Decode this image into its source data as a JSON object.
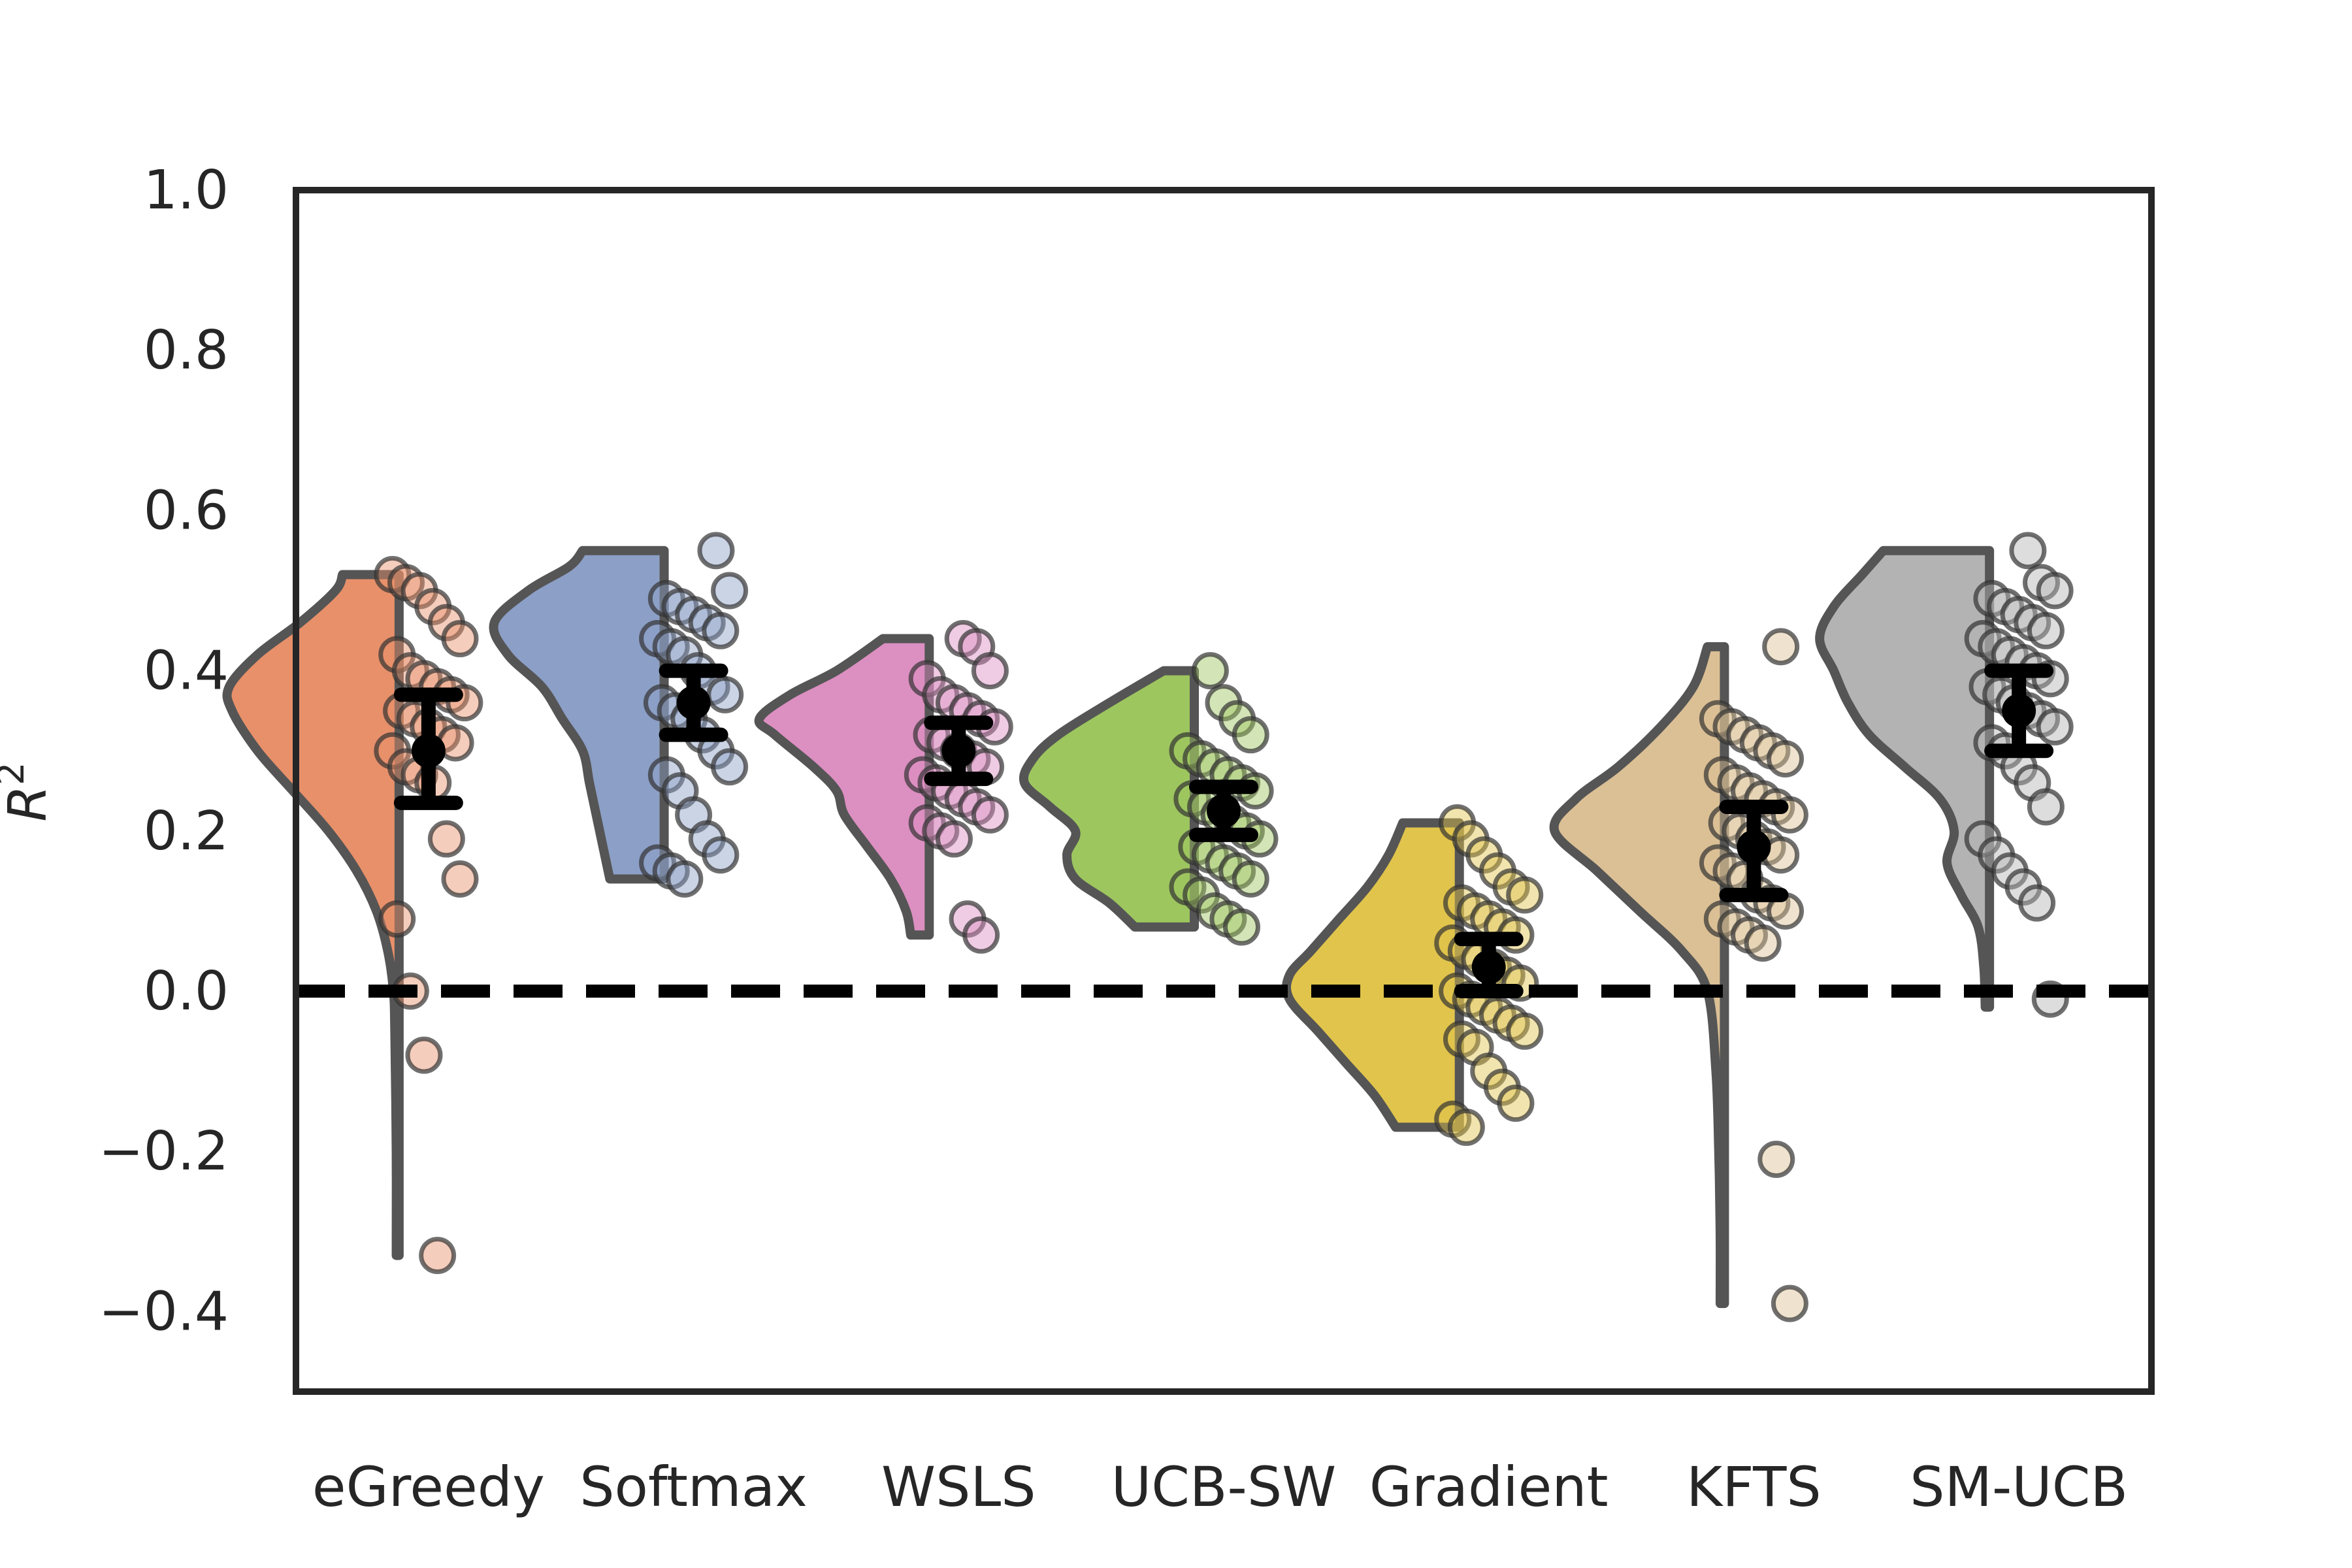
{
  "chart_data": {
    "type": "raincloud",
    "title": "",
    "xlabel": "",
    "ylabel": "R",
    "ylabel_superscript": "2",
    "ylim": [
      -0.5,
      1.0
    ],
    "yticks": [
      1.0,
      0.8,
      0.6,
      0.4,
      0.2,
      0.0,
      -0.2,
      -0.4
    ],
    "ytick_labels": [
      "1.0",
      "0.8",
      "0.6",
      "0.4",
      "0.2",
      "0.0",
      "−0.2",
      "−0.4"
    ],
    "reference_line": 0.0,
    "grid": false,
    "legend": "none",
    "categories": [
      "eGreedy",
      "Softmax",
      "WSLS",
      "UCB-SW",
      "Gradient",
      "KFTS",
      "SM-UCB"
    ],
    "colors": [
      "#e8906a",
      "#8c9fc6",
      "#dc8fc1",
      "#9dc65f",
      "#e1c44b",
      "#dbc095",
      "#b3b3b3"
    ],
    "series": [
      {
        "mean": 0.3,
        "ci": [
          0.235,
          0.37
        ],
        "density_range": [
          -0.33,
          0.52
        ],
        "density": [
          [
            -0.33,
            0.002
          ],
          [
            -0.2,
            0.002
          ],
          [
            -0.05,
            0.003
          ],
          [
            0.0,
            0.004
          ],
          [
            0.05,
            0.008
          ],
          [
            0.1,
            0.016
          ],
          [
            0.15,
            0.03
          ],
          [
            0.2,
            0.05
          ],
          [
            0.25,
            0.075
          ],
          [
            0.3,
            0.1
          ],
          [
            0.35,
            0.118
          ],
          [
            0.38,
            0.12
          ],
          [
            0.42,
            0.1
          ],
          [
            0.46,
            0.07
          ],
          [
            0.5,
            0.045
          ],
          [
            0.52,
            0.04
          ]
        ],
        "points": [
          0.52,
          0.51,
          0.5,
          0.48,
          0.46,
          0.44,
          0.42,
          0.4,
          0.39,
          0.38,
          0.37,
          0.36,
          0.35,
          0.34,
          0.33,
          0.32,
          0.31,
          0.3,
          0.28,
          0.27,
          0.26,
          0.19,
          0.14,
          0.09,
          0.0,
          -0.08,
          -0.33
        ]
      },
      {
        "mean": 0.36,
        "ci": [
          0.32,
          0.4
        ],
        "density_range": [
          0.14,
          0.55
        ],
        "density": [
          [
            0.14,
            0.04
          ],
          [
            0.18,
            0.045
          ],
          [
            0.22,
            0.05
          ],
          [
            0.26,
            0.055
          ],
          [
            0.3,
            0.06
          ],
          [
            0.34,
            0.075
          ],
          [
            0.38,
            0.09
          ],
          [
            0.42,
            0.115
          ],
          [
            0.46,
            0.125
          ],
          [
            0.5,
            0.1
          ],
          [
            0.53,
            0.07
          ],
          [
            0.55,
            0.06
          ]
        ],
        "points": [
          0.55,
          0.5,
          0.49,
          0.48,
          0.47,
          0.46,
          0.45,
          0.44,
          0.43,
          0.42,
          0.4,
          0.38,
          0.37,
          0.36,
          0.35,
          0.34,
          0.32,
          0.3,
          0.28,
          0.27,
          0.25,
          0.22,
          0.19,
          0.17,
          0.16,
          0.15,
          0.14
        ]
      },
      {
        "mean": 0.3,
        "ci": [
          0.265,
          0.335
        ],
        "density_range": [
          0.07,
          0.44
        ],
        "density": [
          [
            0.07,
            0.012
          ],
          [
            0.1,
            0.015
          ],
          [
            0.14,
            0.025
          ],
          [
            0.18,
            0.04
          ],
          [
            0.22,
            0.055
          ],
          [
            0.25,
            0.06
          ],
          [
            0.28,
            0.075
          ],
          [
            0.32,
            0.1
          ],
          [
            0.34,
            0.11
          ],
          [
            0.37,
            0.09
          ],
          [
            0.4,
            0.06
          ],
          [
            0.44,
            0.03
          ]
        ],
        "points": [
          0.44,
          0.43,
          0.4,
          0.39,
          0.37,
          0.36,
          0.35,
          0.34,
          0.33,
          0.32,
          0.31,
          0.3,
          0.29,
          0.28,
          0.27,
          0.26,
          0.25,
          0.24,
          0.23,
          0.22,
          0.21,
          0.2,
          0.19,
          0.09,
          0.07
        ]
      },
      {
        "mean": 0.225,
        "ci": [
          0.195,
          0.255
        ],
        "density_range": [
          0.08,
          0.4
        ],
        "density": [
          [
            0.08,
            0.035
          ],
          [
            0.11,
            0.05
          ],
          [
            0.14,
            0.07
          ],
          [
            0.17,
            0.075
          ],
          [
            0.2,
            0.07
          ],
          [
            0.23,
            0.085
          ],
          [
            0.26,
            0.1
          ],
          [
            0.29,
            0.095
          ],
          [
            0.32,
            0.08
          ],
          [
            0.36,
            0.05
          ],
          [
            0.4,
            0.018
          ]
        ],
        "points": [
          0.4,
          0.36,
          0.34,
          0.32,
          0.3,
          0.29,
          0.28,
          0.27,
          0.26,
          0.25,
          0.24,
          0.23,
          0.22,
          0.21,
          0.2,
          0.19,
          0.18,
          0.17,
          0.16,
          0.15,
          0.14,
          0.13,
          0.12,
          0.1,
          0.09,
          0.08
        ]
      },
      {
        "mean": 0.03,
        "ci": [
          0.0,
          0.065
        ],
        "density_range": [
          -0.17,
          0.21
        ],
        "density": [
          [
            -0.17,
            0.045
          ],
          [
            -0.13,
            0.06
          ],
          [
            -0.09,
            0.08
          ],
          [
            -0.05,
            0.1
          ],
          [
            -0.01,
            0.12
          ],
          [
            0.02,
            0.12
          ],
          [
            0.05,
            0.105
          ],
          [
            0.09,
            0.085
          ],
          [
            0.13,
            0.065
          ],
          [
            0.17,
            0.05
          ],
          [
            0.21,
            0.04
          ]
        ],
        "points": [
          0.21,
          0.19,
          0.17,
          0.15,
          0.13,
          0.12,
          0.11,
          0.1,
          0.09,
          0.08,
          0.07,
          0.06,
          0.05,
          0.04,
          0.03,
          0.02,
          0.01,
          0.0,
          -0.01,
          -0.02,
          -0.03,
          -0.04,
          -0.05,
          -0.06,
          -0.07,
          -0.1,
          -0.12,
          -0.14,
          -0.16,
          -0.17
        ]
      },
      {
        "mean": 0.18,
        "ci": [
          0.12,
          0.23
        ],
        "density_range": [
          -0.39,
          0.43
        ],
        "density": [
          [
            -0.39,
            0.003
          ],
          [
            -0.3,
            0.003
          ],
          [
            -0.2,
            0.004
          ],
          [
            -0.1,
            0.006
          ],
          [
            0.0,
            0.012
          ],
          [
            0.05,
            0.03
          ],
          [
            0.1,
            0.06
          ],
          [
            0.15,
            0.09
          ],
          [
            0.2,
            0.12
          ],
          [
            0.24,
            0.105
          ],
          [
            0.28,
            0.075
          ],
          [
            0.33,
            0.045
          ],
          [
            0.38,
            0.022
          ],
          [
            0.43,
            0.012
          ]
        ],
        "points": [
          0.43,
          0.34,
          0.33,
          0.32,
          0.31,
          0.3,
          0.29,
          0.27,
          0.26,
          0.25,
          0.24,
          0.23,
          0.22,
          0.21,
          0.2,
          0.19,
          0.18,
          0.17,
          0.16,
          0.15,
          0.14,
          0.12,
          0.11,
          0.1,
          0.09,
          0.08,
          0.07,
          0.06,
          -0.21,
          -0.39
        ]
      },
      {
        "mean": 0.35,
        "ci": [
          0.3,
          0.4
        ],
        "density_range": [
          -0.02,
          0.55
        ],
        "density": [
          [
            -0.02,
            0.003
          ],
          [
            0.03,
            0.004
          ],
          [
            0.08,
            0.008
          ],
          [
            0.12,
            0.02
          ],
          [
            0.16,
            0.03
          ],
          [
            0.2,
            0.025
          ],
          [
            0.24,
            0.035
          ],
          [
            0.28,
            0.06
          ],
          [
            0.32,
            0.085
          ],
          [
            0.36,
            0.1
          ],
          [
            0.4,
            0.11
          ],
          [
            0.44,
            0.12
          ],
          [
            0.48,
            0.11
          ],
          [
            0.52,
            0.09
          ],
          [
            0.55,
            0.075
          ]
        ],
        "points": [
          0.55,
          0.51,
          0.5,
          0.49,
          0.48,
          0.47,
          0.46,
          0.45,
          0.44,
          0.43,
          0.42,
          0.41,
          0.4,
          0.39,
          0.38,
          0.37,
          0.36,
          0.35,
          0.34,
          0.33,
          0.31,
          0.3,
          0.28,
          0.26,
          0.23,
          0.19,
          0.17,
          0.15,
          0.13,
          0.11,
          -0.01
        ]
      }
    ]
  }
}
